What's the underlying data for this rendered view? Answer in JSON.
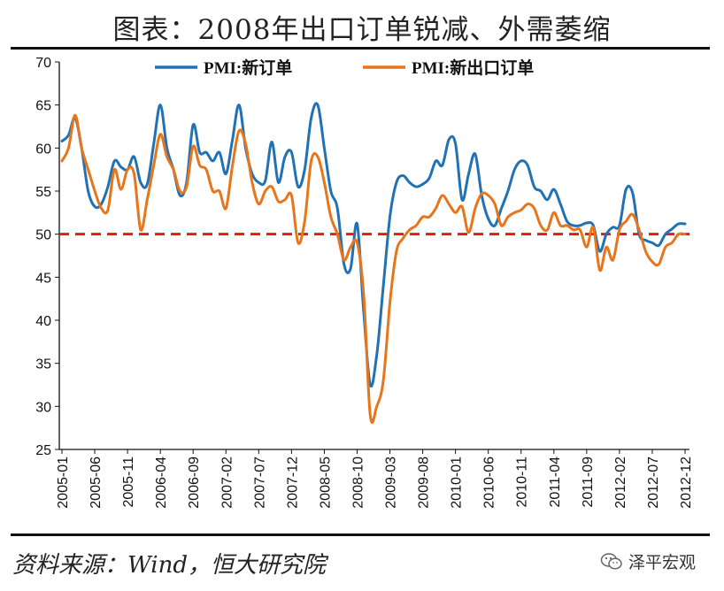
{
  "title": "图表：2008年出口订单锐减、外需萎缩",
  "source": "资料来源：Wind，恒大研究院",
  "watermark": "泽平宏观",
  "colors": {
    "series1": "#2171b5",
    "series2": "#e8751a",
    "reference": "#e31a1c",
    "axis": "#111111"
  },
  "chart_data": {
    "type": "line",
    "title": "",
    "xlabel": "",
    "ylabel": "",
    "ylim": [
      25,
      70
    ],
    "yticks": [
      25,
      30,
      35,
      40,
      45,
      50,
      55,
      60,
      65,
      70
    ],
    "x_tick_labels": [
      "2005-01",
      "2005-06",
      "2005-11",
      "2006-04",
      "2006-09",
      "2007-02",
      "2007-07",
      "2007-12",
      "2008-05",
      "2008-10",
      "2009-03",
      "2009-08",
      "2010-01",
      "2010-06",
      "2010-11",
      "2011-04",
      "2011-09",
      "2012-02",
      "2012-07",
      "2012-12"
    ],
    "x_range": [
      "2005-01",
      "2012-12"
    ],
    "legend_position": "top",
    "reference_line": {
      "value": 50,
      "style": "dashed"
    },
    "series": [
      {
        "name": "PMI:新订单",
        "values": [
          60.8,
          61.5,
          63.5,
          60.0,
          55.0,
          53.2,
          53.5,
          55.5,
          58.5,
          57.8,
          57.5,
          59.0,
          56.0,
          55.8,
          60.5,
          65.0,
          60.0,
          57.5,
          54.5,
          56.0,
          62.7,
          59.5,
          59.5,
          58.5,
          59.5,
          57.0,
          61.0,
          65.0,
          60.0,
          57.0,
          56.0,
          56.2,
          60.7,
          56.0,
          59.0,
          59.5,
          55.5,
          57.5,
          63.5,
          65.0,
          60.0,
          55.0,
          53.0,
          46.5,
          46.0,
          51.2,
          41.0,
          32.5,
          36.0,
          44.0,
          52.0,
          56.0,
          56.8,
          56.0,
          55.5,
          55.8,
          56.5,
          58.5,
          58.0,
          61.0,
          60.5,
          54.0,
          57.0,
          59.3,
          54.5,
          51.8,
          51.0,
          53.0,
          55.0,
          57.5,
          58.5,
          58.0,
          55.5,
          55.0,
          54.0,
          55.2,
          53.5,
          51.5,
          51.0,
          51.0,
          51.3,
          51.0,
          48.0,
          50.0,
          50.8,
          51.0,
          55.2,
          54.8,
          50.0,
          49.3,
          49.0,
          48.7,
          50.0,
          50.6,
          51.2,
          51.2
        ]
      },
      {
        "name": "PMI:新出口订单",
        "values": [
          58.5,
          60.0,
          63.8,
          60.0,
          57.5,
          55.0,
          53.0,
          52.8,
          57.5,
          55.2,
          57.5,
          57.0,
          50.5,
          54.0,
          58.0,
          61.6,
          59.0,
          57.5,
          55.0,
          55.5,
          60.2,
          58.0,
          57.5,
          55.0,
          55.0,
          53.0,
          58.0,
          62.0,
          60.5,
          56.0,
          53.5,
          55.0,
          55.5,
          53.8,
          54.0,
          54.5,
          49.0,
          51.5,
          58.5,
          59.0,
          56.0,
          52.0,
          50.0,
          47.0,
          48.5,
          49.0,
          43.0,
          29.0,
          30.0,
          33.0,
          42.0,
          48.0,
          49.5,
          50.5,
          51.0,
          52.0,
          52.0,
          53.0,
          54.5,
          53.5,
          52.5,
          53.2,
          50.2,
          53.0,
          54.7,
          54.5,
          53.5,
          51.0,
          52.0,
          52.5,
          52.8,
          53.5,
          53.0,
          51.0,
          50.5,
          52.5,
          51.0,
          51.0,
          50.5,
          50.5,
          48.5,
          50.8,
          45.8,
          48.5,
          47.0,
          50.5,
          51.5,
          52.3,
          50.5,
          48.0,
          46.8,
          46.5,
          48.5,
          49.0,
          50.0,
          50.0
        ]
      }
    ]
  }
}
